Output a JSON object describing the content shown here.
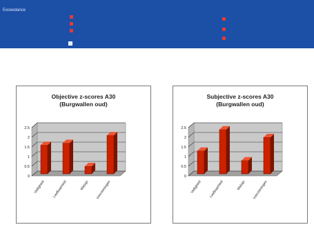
{
  "header": {
    "title": "Exceedance",
    "left_items": [
      "",
      "",
      ""
    ],
    "legend_items": [
      "",
      "",
      ""
    ]
  },
  "colors": {
    "header_bg": "#1c4fa6",
    "bar": "#cc2200",
    "plot_bg": "#c9c9c9"
  },
  "chart_data": [
    {
      "type": "bar",
      "title": "Objective z-scores A30",
      "subtitle": "(Burgwallen oud)",
      "categories": [
        "Veiligheid",
        "Leefbaarheid",
        "Welzijn",
        "Voorzieningen"
      ],
      "values": [
        1.6,
        1.7,
        0.5,
        2.1
      ],
      "ylim": [
        0,
        2.5
      ],
      "yticks": [
        "0",
        "0.5",
        "1",
        "1.5",
        "2",
        "2.5"
      ],
      "grid": true,
      "legend": "none"
    },
    {
      "type": "bar",
      "title": "Subjective z-scores A30",
      "subtitle": "(Burgwallen oud)",
      "categories": [
        "Veiligheid",
        "Leefbaarheid",
        "Welzijn",
        "Voorzieningen"
      ],
      "values": [
        1.3,
        2.4,
        0.8,
        2.0
      ],
      "ylim": [
        0,
        2.5
      ],
      "yticks": [
        "0",
        "0.5",
        "1",
        "1.5",
        "2",
        "2.5"
      ],
      "grid": true,
      "legend": "none"
    }
  ]
}
